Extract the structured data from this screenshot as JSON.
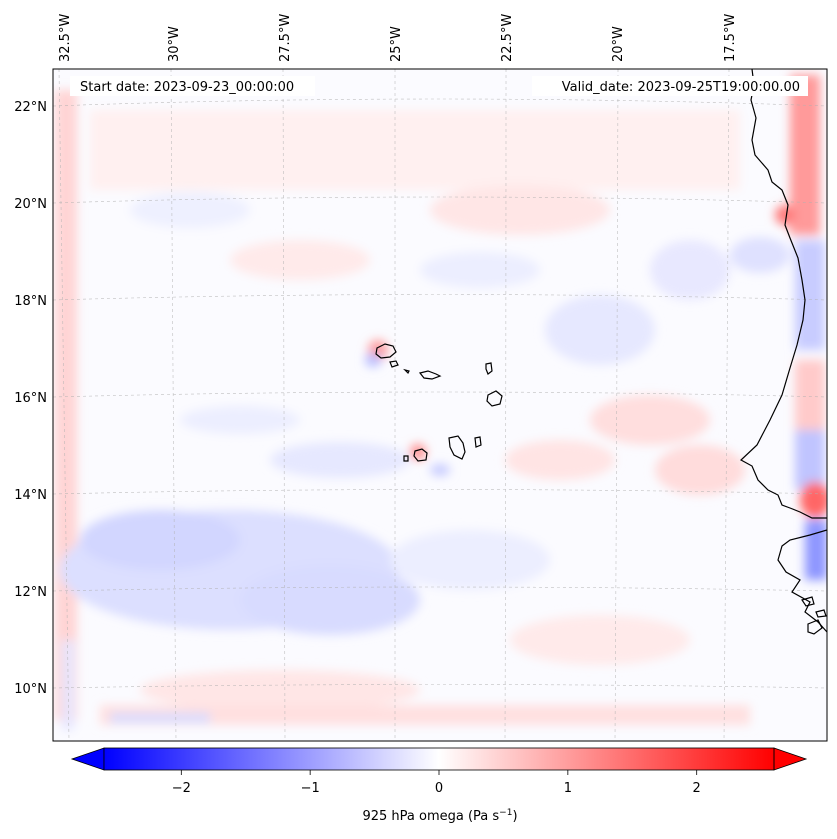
{
  "map": {
    "start_label": "Start date: 2023-09-23_00:00:00",
    "valid_label": "Valid_date: 2023-09-25T19:00:00.00",
    "longitude_labels": [
      "32.5°W",
      "30°W",
      "27.5°W",
      "25°W",
      "22.5°W",
      "20°W",
      "17.5°W"
    ],
    "latitude_labels": [
      "22°N",
      "20°N",
      "18°N",
      "16°N",
      "14°N",
      "12°N",
      "10°N"
    ],
    "gridlines": true,
    "coastline_color": "#000000",
    "features": [
      "Cabo Verde islands",
      "West African coastline"
    ]
  },
  "colorbar": {
    "label_text": "925 hPa omega (Pa s",
    "label_exp": "−1",
    "label_close": ")",
    "ticks": [
      "−2",
      "−1",
      "0",
      "1",
      "2"
    ],
    "tick_values": [
      -2,
      -1,
      0,
      1,
      2
    ],
    "range": [
      -2.6,
      2.6
    ],
    "extend": "both",
    "colormap": "bwr",
    "color_low": "#0000ff",
    "color_mid": "#ffffff",
    "color_high": "#ff0000"
  }
}
